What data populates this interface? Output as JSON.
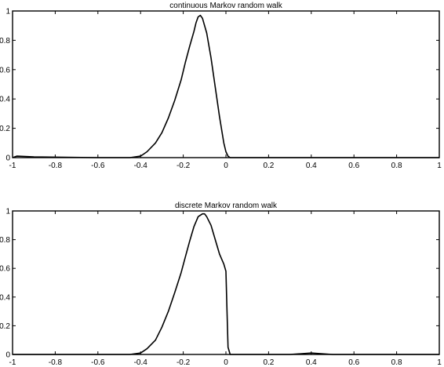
{
  "chart_data": [
    {
      "type": "line",
      "title": "continuous Markov random walk",
      "xlim": [
        -1,
        1
      ],
      "ylim": [
        0,
        1
      ],
      "xticks": [
        -1,
        -0.8,
        -0.6,
        -0.4,
        -0.2,
        0,
        0.2,
        0.4,
        0.6,
        0.8,
        1
      ],
      "xtick_labels": [
        "-1",
        "-0.8",
        "-0.6",
        "-0.4",
        "-0.2",
        "0",
        "0.2",
        "0.4",
        "0.6",
        "0.8",
        "1"
      ],
      "yticks": [
        0,
        0.2,
        0.4,
        0.6,
        0.8,
        1
      ],
      "ytick_labels": [
        "0",
        "0.2",
        "0.4",
        "0.6",
        "0.8",
        "1"
      ],
      "grid": false,
      "series": [
        {
          "x": [
            -1,
            -0.98,
            -0.9,
            -0.6,
            -0.45,
            -0.4,
            -0.37,
            -0.33,
            -0.3,
            -0.27,
            -0.24,
            -0.21,
            -0.19,
            -0.17,
            -0.15,
            -0.14,
            -0.13,
            -0.12,
            -0.11,
            -0.09,
            -0.07,
            -0.05,
            -0.03,
            -0.01,
            0.0,
            0.01,
            0.02,
            0.1,
            0.5,
            1.0
          ],
          "y": [
            0.0,
            0.01,
            0.005,
            0.0,
            0.0,
            0.01,
            0.04,
            0.1,
            0.17,
            0.27,
            0.39,
            0.53,
            0.65,
            0.76,
            0.86,
            0.92,
            0.96,
            0.97,
            0.95,
            0.85,
            0.68,
            0.48,
            0.28,
            0.1,
            0.04,
            0.01,
            0.0,
            0.0,
            0.0,
            0.0
          ]
        }
      ]
    },
    {
      "type": "line",
      "title": "discrete Markov random walk",
      "xlim": [
        -1,
        1
      ],
      "ylim": [
        0,
        1
      ],
      "xticks": [
        -1,
        -0.8,
        -0.6,
        -0.4,
        -0.2,
        0,
        0.2,
        0.4,
        0.6,
        0.8,
        1
      ],
      "xtick_labels": [
        "-1",
        "-0.8",
        "-0.6",
        "-0.4",
        "-0.2",
        "0",
        "0.2",
        "0.4",
        "0.6",
        "0.8",
        "1"
      ],
      "yticks": [
        0,
        0.2,
        0.4,
        0.6,
        0.8,
        1
      ],
      "ytick_labels": [
        "0",
        "0.2",
        "0.4",
        "0.6",
        "0.8",
        "1"
      ],
      "grid": false,
      "series": [
        {
          "x": [
            -1,
            -0.98,
            -0.9,
            -0.6,
            -0.45,
            -0.4,
            -0.37,
            -0.33,
            -0.3,
            -0.27,
            -0.24,
            -0.21,
            -0.19,
            -0.17,
            -0.15,
            -0.13,
            -0.11,
            -0.1,
            -0.09,
            -0.07,
            -0.05,
            -0.03,
            -0.01,
            0.0,
            0.005,
            0.01,
            0.02,
            0.05,
            0.3,
            0.4,
            0.5,
            1.0
          ],
          "y": [
            0.0,
            0.0,
            0.0,
            0.0,
            0.0,
            0.01,
            0.04,
            0.1,
            0.19,
            0.3,
            0.43,
            0.57,
            0.68,
            0.79,
            0.89,
            0.96,
            0.98,
            0.98,
            0.96,
            0.9,
            0.8,
            0.7,
            0.63,
            0.58,
            0.3,
            0.05,
            0.0,
            0.0,
            0.0,
            0.01,
            0.0,
            0.0
          ]
        }
      ]
    }
  ]
}
